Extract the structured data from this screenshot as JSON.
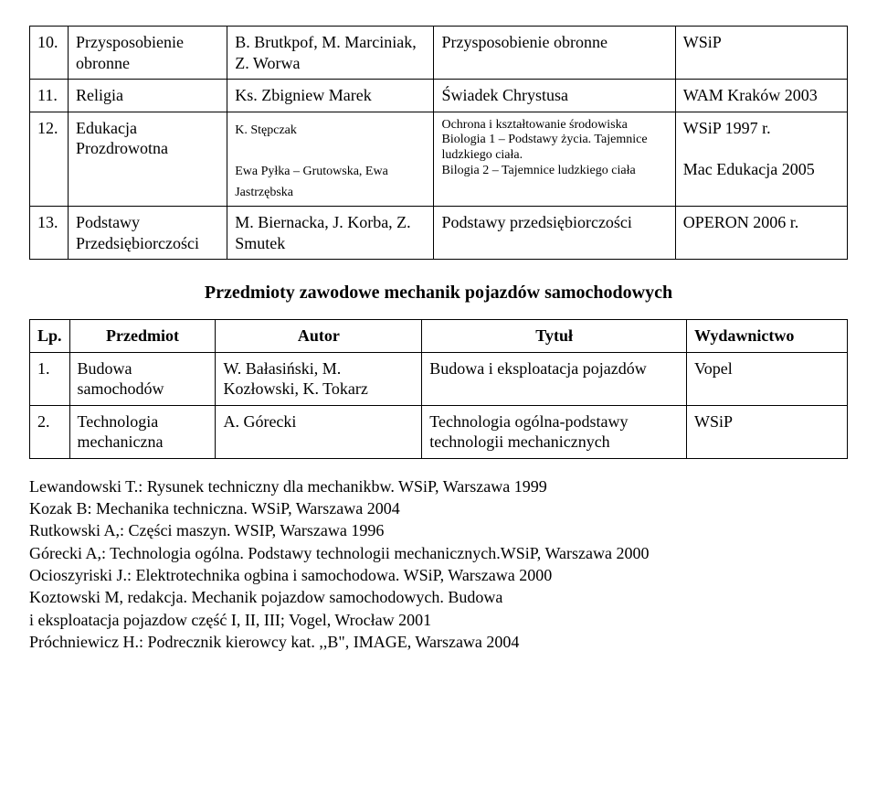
{
  "table1": {
    "rows": [
      {
        "num": "10.",
        "subject": "Przysposobienie obronne",
        "author": "B. Brutkpof, M. Marciniak, Z. Worwa",
        "title": "Przysposobienie obronne",
        "publisher": "WSiP"
      },
      {
        "num": "11.",
        "subject": "Religia",
        "author": "Ks. Zbigniew Marek",
        "title": "Świadek Chrystusa",
        "publisher": "WAM Kraków 2003"
      },
      {
        "num": "12.",
        "subject": "Edukacja Prozdrowotna",
        "author1": "K. Stępczak",
        "author2": "Ewa Pyłka – Grutowska, Ewa Jastrzębska",
        "title_small": "Ochrona i kształtowanie środowiska Biologia 1 – Podstawy życia. Tajemnice ludzkiego ciała.\nBilogia 2 – Tajemnice ludzkiego ciała",
        "publisher1": "WSiP  1997 r.",
        "publisher2": "Mac Edukacja 2005"
      },
      {
        "num": "13.",
        "subject": "Podstawy Przedsiębiorczości",
        "author": "M. Biernacka, J. Korba, Z. Smutek",
        "title": "Podstawy przedsiębiorczości",
        "publisher": "OPERON 2006 r."
      }
    ]
  },
  "section_heading": "Przedmioty zawodowe mechanik pojazdów samochodowych",
  "table2": {
    "headers": {
      "num": "Lp.",
      "subject": "Przedmiot",
      "author": "Autor",
      "title": "Tytuł",
      "publisher": "Wydawnictwo"
    },
    "rows": [
      {
        "num": "1.",
        "subject": "Budowa samochodów",
        "author": "W. Bałasiński, M. Kozłowski, K. Tokarz",
        "title": "Budowa i eksploatacja pojazdów",
        "publisher": "Vopel"
      },
      {
        "num": "2.",
        "subject": "Technologia mechaniczna",
        "author": "A. Górecki",
        "title": "Technologia ogólna-podstawy technologii mechanicznych",
        "publisher": "WSiP"
      }
    ]
  },
  "footnotes": [
    "Lewandowski T.: Rysunek techniczny dla mechanikbw. WSiP, Warszawa 1999",
    "Kozak B: Mechanika techniczna. WSiP, Warszawa 2004",
    "Rutkowski A,: Części maszyn. WSIP, Warszawa 1996",
    "Górecki A,: Technologia ogólna. Podstawy technologii mechanicznych.WSiP, Warszawa 2000",
    "Ocioszyriski J.: Elektrotechnika ogbina i samochodowa. WSiP, Warszawa 2000",
    "Koztowski M, redakcja. Mechanik pojazdow samochodowych. Budowa",
    "i eksploatacja pojazdow część I, II, III; Vogel, Wrocław 2001",
    "Próchniewicz H.: Podrecznik kierowcy kat. ,,B\", IMAGE, Warszawa 2004"
  ]
}
